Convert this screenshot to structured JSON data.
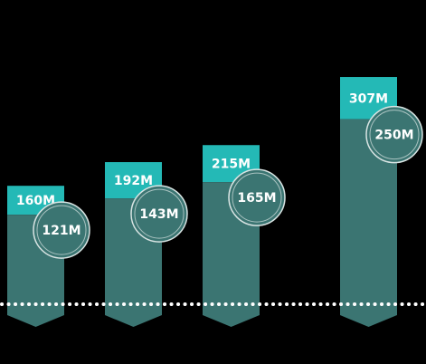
{
  "colors": {
    "background": "#000000",
    "total_bar": "#24b9b6",
    "sub_bar": "#3b7572",
    "circle": "#3b7572",
    "circle_ring": "#d8e4e3",
    "label": "#ffffff",
    "dotted_line": "#ffffff"
  },
  "chart_data": {
    "type": "bar",
    "title": "",
    "xlabel": "",
    "ylabel": "",
    "categories": [
      "",
      "",
      "",
      ""
    ],
    "series": [
      {
        "name": "",
        "values": [
          160,
          192,
          215,
          307
        ]
      },
      {
        "name": "",
        "values": [
          121,
          143,
          165,
          250
        ]
      }
    ],
    "data_labels": {
      "total": [
        "160M",
        "192M",
        "215M",
        "307M"
      ],
      "inner": [
        "121M",
        "143M",
        "165M",
        "250M"
      ]
    },
    "unit": "M",
    "grid": false,
    "legend": "none"
  }
}
